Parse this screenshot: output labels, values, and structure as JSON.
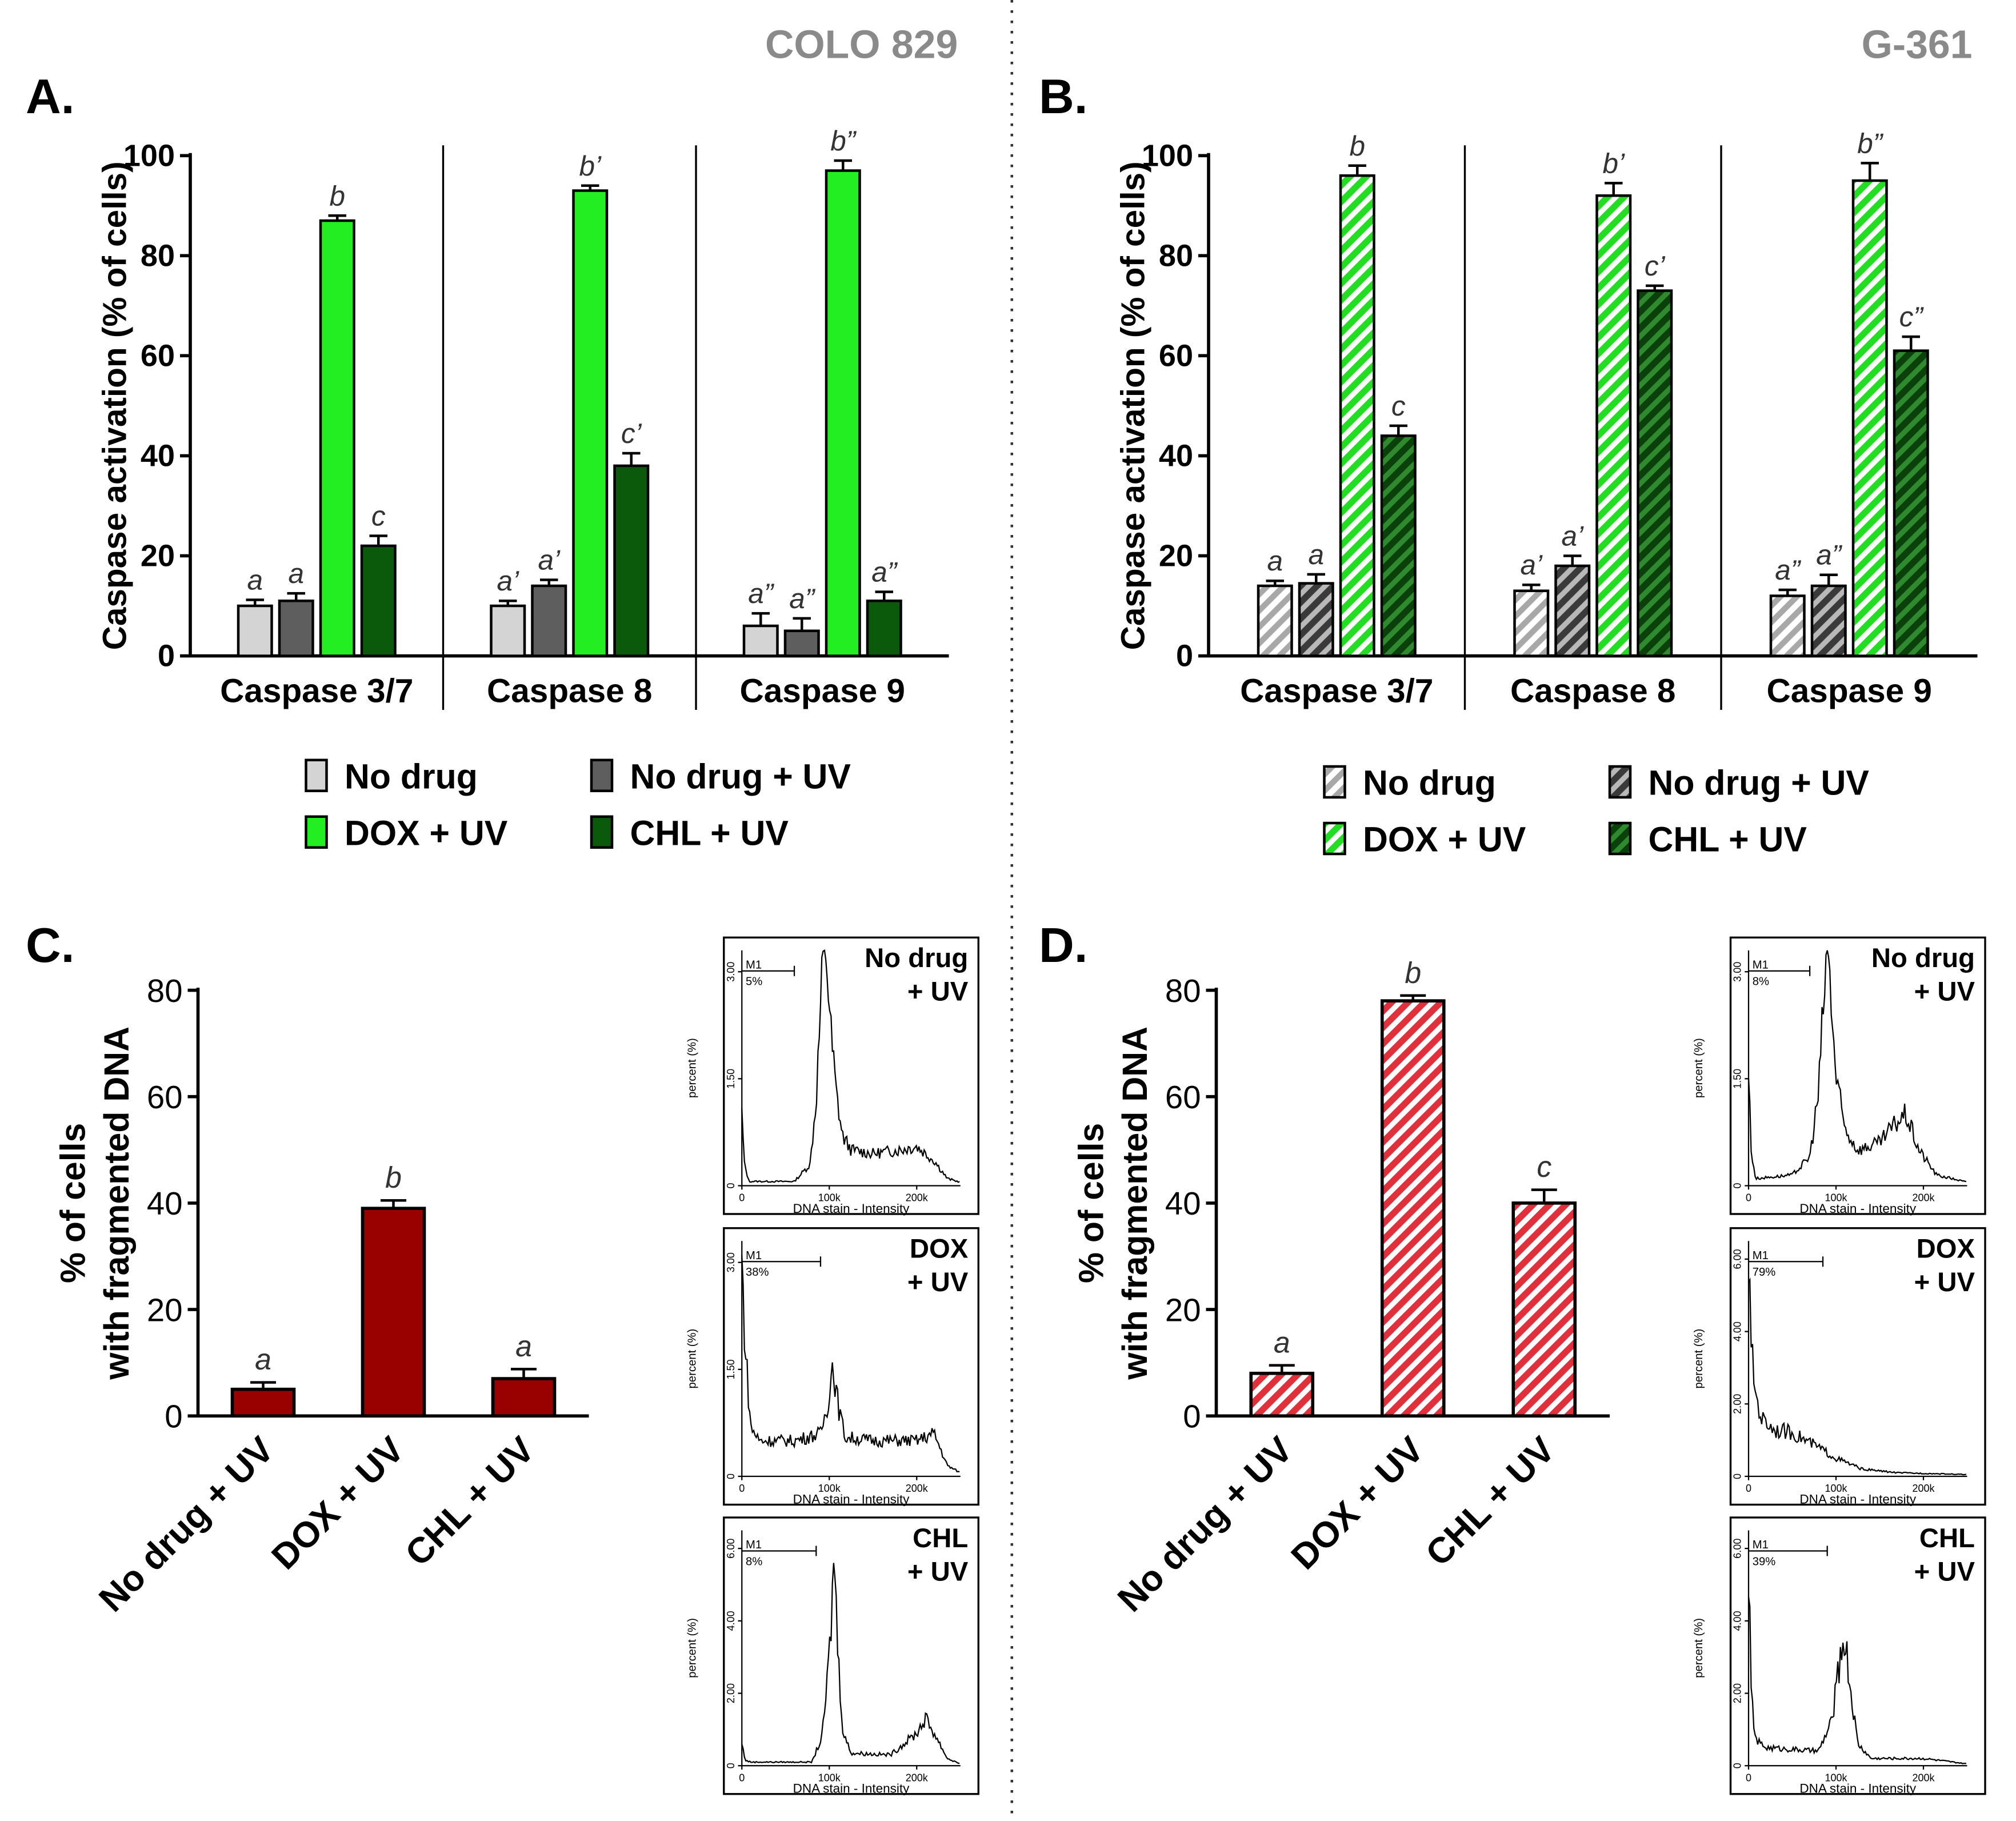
{
  "colors": {
    "no_drug": "#d4d4d4",
    "no_drug_uv": "#5e5e5e",
    "dox_uv": "#22ee22",
    "chl_uv": "#0b5a0b",
    "red": "#990000",
    "red_hatch": "#ee4a52",
    "cell_line": "#8a8a8a"
  },
  "chart_data": [
    {
      "id": "A",
      "type": "bar",
      "panel_label": "A.",
      "cell_line": "COLO 829",
      "hatched": false,
      "ylabel": "Caspase activation (% of cells)",
      "ylim": [
        0,
        100
      ],
      "yticks": [
        "0",
        "20",
        "40",
        "60",
        "80",
        "100"
      ],
      "categories": [
        "Caspase 3/7",
        "Caspase 8",
        "Caspase 9"
      ],
      "series": [
        {
          "name": "No drug",
          "values": [
            10,
            10,
            6
          ],
          "errors": [
            1.2,
            1,
            2.5
          ],
          "letters": [
            "a",
            "a’",
            "a”"
          ]
        },
        {
          "name": "No drug + UV",
          "values": [
            11,
            14,
            5
          ],
          "errors": [
            1.5,
            1.2,
            2.5
          ],
          "letters": [
            "a",
            "a’",
            "a”"
          ]
        },
        {
          "name": "DOX + UV",
          "values": [
            87,
            93,
            97
          ],
          "errors": [
            1,
            1,
            2
          ],
          "letters": [
            "b",
            "b’",
            "b”"
          ]
        },
        {
          "name": "CHL + UV",
          "values": [
            22,
            38,
            11
          ],
          "errors": [
            2,
            2.5,
            1.8
          ],
          "letters": [
            "c",
            "c’",
            "a”"
          ]
        }
      ],
      "legend": [
        "No drug",
        "No drug + UV",
        "DOX + UV",
        "CHL + UV"
      ]
    },
    {
      "id": "B",
      "type": "bar",
      "panel_label": "B.",
      "cell_line": "G-361",
      "hatched": true,
      "ylabel": "Caspase activation (% of cells)",
      "ylim": [
        0,
        100
      ],
      "yticks": [
        "0",
        "20",
        "40",
        "60",
        "80",
        "100"
      ],
      "categories": [
        "Caspase 3/7",
        "Caspase 8",
        "Caspase 9"
      ],
      "series": [
        {
          "name": "No drug",
          "values": [
            14,
            13,
            12
          ],
          "errors": [
            1,
            1.2,
            1.2
          ],
          "letters": [
            "a",
            "a’",
            "a”"
          ]
        },
        {
          "name": "No drug + UV",
          "values": [
            14.5,
            18,
            14
          ],
          "errors": [
            1.8,
            2,
            2.2
          ],
          "letters": [
            "a",
            "a’",
            "a”"
          ]
        },
        {
          "name": "DOX + UV",
          "values": [
            96,
            92,
            95
          ],
          "errors": [
            2,
            2.5,
            3.5
          ],
          "letters": [
            "b",
            "b’",
            "b”"
          ]
        },
        {
          "name": "CHL + UV",
          "values": [
            44,
            73,
            61
          ],
          "errors": [
            2,
            1,
            2.8
          ],
          "letters": [
            "c",
            "c’",
            "c”"
          ]
        }
      ],
      "legend": [
        "No drug",
        "No drug + UV",
        "DOX + UV",
        "CHL + UV"
      ]
    },
    {
      "id": "C",
      "type": "bar",
      "panel_label": "C.",
      "hatched": false,
      "ylabel_lines": [
        "% of cells",
        "with fragmented DNA"
      ],
      "ylim": [
        0,
        80
      ],
      "yticks": [
        "0",
        "20",
        "40",
        "60",
        "80"
      ],
      "categories": [
        "No drug + UV",
        "DOX + UV",
        "CHL + UV"
      ],
      "values": [
        5,
        39,
        7
      ],
      "errors": [
        1.3,
        1.5,
        1.8
      ],
      "letters": [
        "a",
        "b",
        "a"
      ]
    },
    {
      "id": "D",
      "type": "bar",
      "panel_label": "D.",
      "hatched": true,
      "ylabel_lines": [
        "% of cells",
        "with fragmented DNA"
      ],
      "ylim": [
        0,
        80
      ],
      "yticks": [
        "0",
        "20",
        "40",
        "60",
        "80"
      ],
      "categories": [
        "No drug + UV",
        "DOX + UV",
        "CHL + UV"
      ],
      "values": [
        8,
        78,
        40
      ],
      "errors": [
        1.5,
        1,
        2.5
      ],
      "letters": [
        "a",
        "b",
        "c"
      ]
    }
  ],
  "histograms": [
    {
      "panel": "C",
      "condition": [
        "No drug",
        "+ UV"
      ],
      "gate_label": "M1",
      "gate_value": "5%",
      "gate_end": 60000,
      "ylabel": "percent (%)",
      "yticks": [
        "0",
        "1.50",
        "3.00"
      ],
      "ymax": 3.3,
      "xlabel": "DNA stain - Intensity",
      "xticks": [
        "0",
        "100k",
        "200k"
      ],
      "profile": [
        [
          0,
          1.0
        ],
        [
          3000,
          0.3
        ],
        [
          8000,
          0.06
        ],
        [
          60000,
          0.06
        ],
        [
          78000,
          0.3
        ],
        [
          85000,
          1.2
        ],
        [
          90000,
          2.5
        ],
        [
          95000,
          3.5
        ],
        [
          98000,
          3.0
        ],
        [
          102000,
          2.1
        ],
        [
          108000,
          1.3
        ],
        [
          115000,
          0.7
        ],
        [
          125000,
          0.5
        ],
        [
          150000,
          0.45
        ],
        [
          180000,
          0.5
        ],
        [
          200000,
          0.55
        ],
        [
          220000,
          0.35
        ],
        [
          235000,
          0.1
        ],
        [
          250000,
          0.05
        ]
      ]
    },
    {
      "panel": "C",
      "condition": [
        "DOX",
        "+ UV"
      ],
      "gate_label": "M1",
      "gate_value": "38%",
      "gate_end": 90000,
      "ylabel": "percent (%)",
      "yticks": [
        "0",
        "1.50",
        "3.00"
      ],
      "ymax": 3.3,
      "xlabel": "DNA stain - Intensity",
      "xticks": [
        "0",
        "100k",
        "200k"
      ],
      "profile": [
        [
          0,
          3.0
        ],
        [
          4000,
          1.8
        ],
        [
          10000,
          0.7
        ],
        [
          20000,
          0.5
        ],
        [
          60000,
          0.5
        ],
        [
          90000,
          0.6
        ],
        [
          98000,
          1.0
        ],
        [
          104000,
          1.6
        ],
        [
          110000,
          1.0
        ],
        [
          118000,
          0.55
        ],
        [
          150000,
          0.5
        ],
        [
          200000,
          0.5
        ],
        [
          220000,
          0.6
        ],
        [
          235000,
          0.15
        ],
        [
          250000,
          0.05
        ]
      ]
    },
    {
      "panel": "C",
      "condition": [
        "CHL",
        "+ UV"
      ],
      "gate_label": "M1",
      "gate_value": "8%",
      "gate_end": 85000,
      "ylabel": "percent (%)",
      "yticks": [
        "0",
        "2.00",
        "4.00",
        "6.00"
      ],
      "ymax": 6.5,
      "xlabel": "DNA stain - Intensity",
      "xticks": [
        "0",
        "100k",
        "200k"
      ],
      "profile": [
        [
          0,
          0.6
        ],
        [
          4000,
          0.15
        ],
        [
          10000,
          0.1
        ],
        [
          80000,
          0.1
        ],
        [
          92000,
          0.8
        ],
        [
          100000,
          3.0
        ],
        [
          106000,
          5.9
        ],
        [
          110000,
          3.0
        ],
        [
          116000,
          0.9
        ],
        [
          125000,
          0.35
        ],
        [
          170000,
          0.3
        ],
        [
          200000,
          0.9
        ],
        [
          210000,
          1.3
        ],
        [
          220000,
          0.9
        ],
        [
          235000,
          0.2
        ],
        [
          250000,
          0.05
        ]
      ]
    },
    {
      "panel": "D",
      "condition": [
        "No drug",
        "+ UV"
      ],
      "gate_label": "M1",
      "gate_value": "8%",
      "gate_end": 70000,
      "ylabel": "percent (%)",
      "yticks": [
        "0",
        "1.50",
        "3.00"
      ],
      "ymax": 3.3,
      "xlabel": "DNA stain - Intensity",
      "xticks": [
        "0",
        "100k",
        "200k"
      ],
      "profile": [
        [
          0,
          1.6
        ],
        [
          3000,
          0.5
        ],
        [
          8000,
          0.1
        ],
        [
          50000,
          0.15
        ],
        [
          70000,
          0.4
        ],
        [
          80000,
          1.3
        ],
        [
          86000,
          2.6
        ],
        [
          90000,
          3.5
        ],
        [
          94000,
          2.7
        ],
        [
          100000,
          1.5
        ],
        [
          110000,
          0.8
        ],
        [
          125000,
          0.5
        ],
        [
          150000,
          0.6
        ],
        [
          170000,
          0.9
        ],
        [
          180000,
          1.0
        ],
        [
          195000,
          0.5
        ],
        [
          215000,
          0.15
        ],
        [
          250000,
          0.05
        ]
      ]
    },
    {
      "panel": "D",
      "condition": [
        "DOX",
        "+ UV"
      ],
      "gate_label": "M1",
      "gate_value": "79%",
      "gate_end": 85000,
      "ylabel": "percent (%)",
      "yticks": [
        "0",
        "2.00",
        "4.00",
        "6.00"
      ],
      "ymax": 6.5,
      "xlabel": "DNA stain - Intensity",
      "xticks": [
        "0",
        "100k",
        "200k"
      ],
      "profile": [
        [
          0,
          6.0
        ],
        [
          3000,
          3.5
        ],
        [
          8000,
          2.3
        ],
        [
          15000,
          1.6
        ],
        [
          30000,
          1.3
        ],
        [
          50000,
          1.2
        ],
        [
          80000,
          0.8
        ],
        [
          100000,
          0.5
        ],
        [
          130000,
          0.2
        ],
        [
          170000,
          0.1
        ],
        [
          250000,
          0.05
        ]
      ]
    },
    {
      "panel": "D",
      "condition": [
        "CHL",
        "+ UV"
      ],
      "gate_label": "M1",
      "gate_value": "39%",
      "gate_end": 90000,
      "ylabel": "percent (%)",
      "yticks": [
        "0",
        "2.00",
        "4.00",
        "6.00"
      ],
      "ymax": 6.5,
      "xlabel": "DNA stain - Intensity",
      "xticks": [
        "0",
        "100k",
        "200k"
      ],
      "profile": [
        [
          0,
          5.5
        ],
        [
          3000,
          2.0
        ],
        [
          8000,
          0.7
        ],
        [
          20000,
          0.5
        ],
        [
          80000,
          0.4
        ],
        [
          95000,
          1.2
        ],
        [
          105000,
          3.0
        ],
        [
          110000,
          3.6
        ],
        [
          116000,
          2.2
        ],
        [
          125000,
          0.6
        ],
        [
          140000,
          0.2
        ],
        [
          200000,
          0.2
        ],
        [
          250000,
          0.05
        ]
      ]
    }
  ]
}
